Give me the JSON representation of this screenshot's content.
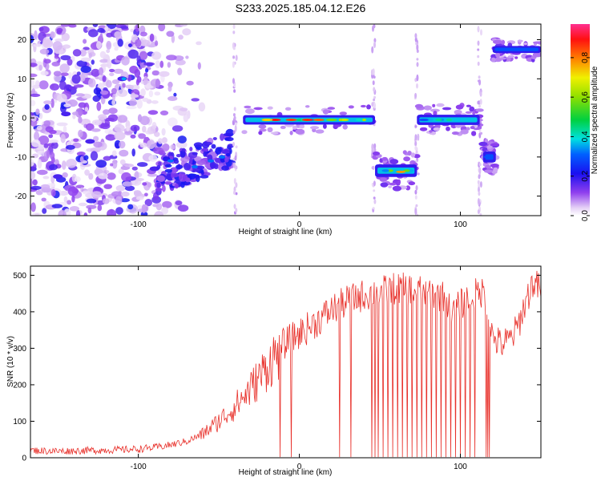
{
  "title": "S233.2025.185.04.12.E26",
  "chart_data": [
    {
      "type": "heatmap",
      "xlabel": "Height of straight line (km)",
      "ylabel": "Frequency (Hz)",
      "xlim": [
        -167,
        150
      ],
      "ylim": [
        -25,
        24
      ],
      "xticks": [
        -100,
        0,
        100
      ],
      "yticks": [
        -20,
        -10,
        0,
        10,
        20
      ],
      "colorbar": {
        "label": "Normalized spectral amplitude",
        "range": [
          0,
          0.97
        ],
        "ticks": [
          0,
          0.2,
          0.4,
          0.6,
          0.8
        ],
        "tick_labels": [
          "0.0",
          "0.2",
          "0.4",
          "0.6",
          "0.8"
        ]
      },
      "features": [
        {
          "name": "noise",
          "x_range": [
            -167,
            -80
          ],
          "freq_range": [
            -25,
            24
          ],
          "amplitude": 0.1
        },
        {
          "name": "oblique-band",
          "x_range": [
            -88,
            -42
          ],
          "freq_start": -15,
          "freq_end": -8,
          "amplitude": 0.3
        },
        {
          "name": "band-1",
          "x_range": [
            -35,
            47
          ],
          "freq": -0.5,
          "amplitude": 0.9
        },
        {
          "name": "band-2",
          "x_range": [
            47,
            73
          ],
          "freq": -13.5,
          "amplitude": 0.6
        },
        {
          "name": "band-3",
          "x_range": [
            73,
            112
          ],
          "freq": -0.5,
          "amplitude": 0.45
        },
        {
          "name": "band-4",
          "x_range": [
            114,
            122
          ],
          "freq": -10,
          "amplitude": 0.3
        },
        {
          "name": "band-5",
          "x_range": [
            120,
            150
          ],
          "freq": 17.5,
          "amplitude": 0.3
        }
      ]
    },
    {
      "type": "line",
      "xlabel": "Height of straight line (km)",
      "ylabel": "SNR (10 * v/v)",
      "xlim": [
        -167,
        150
      ],
      "ylim": [
        0,
        525
      ],
      "xticks": [
        -100,
        0,
        100
      ],
      "yticks": [
        0,
        100,
        200,
        300,
        400,
        500
      ],
      "series": [
        {
          "color": "#e8302a",
          "x": [
            -167,
            -150,
            -130,
            -110,
            -100,
            -90,
            -80,
            -70,
            -60,
            -50,
            -40,
            -30,
            -20,
            -10,
            0,
            10,
            20,
            30,
            40,
            50,
            60,
            70,
            80,
            90,
            95,
            100,
            110,
            115,
            120,
            125,
            130,
            135,
            140,
            145,
            150
          ],
          "y": [
            20,
            18,
            20,
            22,
            24,
            28,
            35,
            45,
            65,
            100,
            140,
            190,
            250,
            310,
            340,
            370,
            405,
            430,
            445,
            455,
            465,
            460,
            455,
            440,
            390,
            420,
            450,
            455,
            330,
            310,
            320,
            350,
            420,
            480,
            460
          ],
          "dropouts_x": [
            -12,
            -5,
            25,
            32,
            45,
            47,
            49,
            52,
            55,
            58,
            61,
            64,
            67,
            70,
            73,
            76,
            79,
            82,
            85,
            88,
            91,
            94,
            97,
            100,
            103,
            106,
            109,
            116,
            117,
            118
          ]
        }
      ]
    }
  ]
}
